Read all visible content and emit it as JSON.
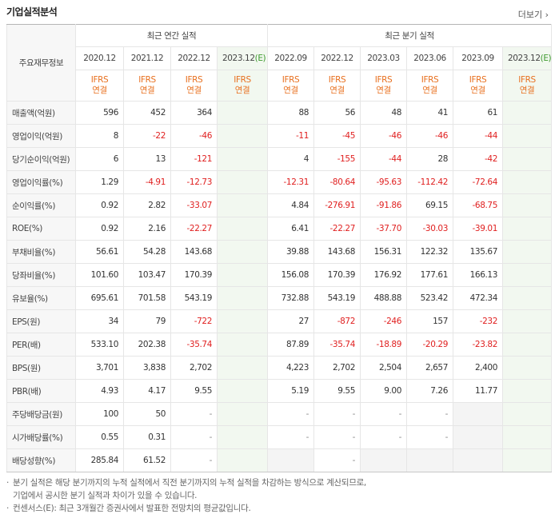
{
  "header": {
    "title": "기업실적분석",
    "more": "더보기"
  },
  "table": {
    "corner": "주요재무정보",
    "groups": [
      {
        "label": "최근 연간 실적",
        "columns": [
          {
            "date": "2020.12",
            "basis": [
              "IFRS",
              "연결"
            ]
          },
          {
            "date": "2021.12",
            "basis": [
              "IFRS",
              "연결"
            ]
          },
          {
            "date": "2022.12",
            "basis": [
              "IFRS",
              "연결"
            ]
          },
          {
            "date": "2023.12",
            "estimate": "(E)",
            "basis": [
              "IFRS",
              "연결"
            ]
          }
        ]
      },
      {
        "label": "최근 분기 실적",
        "columns": [
          {
            "date": "2022.09",
            "basis": [
              "IFRS",
              "연결"
            ]
          },
          {
            "date": "2022.12",
            "basis": [
              "IFRS",
              "연결"
            ]
          },
          {
            "date": "2023.03",
            "basis": [
              "IFRS",
              "연결"
            ]
          },
          {
            "date": "2023.06",
            "basis": [
              "IFRS",
              "연결"
            ]
          },
          {
            "date": "2023.09",
            "basis": [
              "IFRS",
              "연결"
            ]
          },
          {
            "date": "2023.12",
            "estimate": "(E)",
            "basis": [
              "IFRS",
              "연결"
            ]
          }
        ]
      }
    ],
    "sections": [
      [
        {
          "label": "매출액(억원)",
          "values": [
            "596",
            "452",
            "364",
            null,
            "88",
            "56",
            "48",
            "41",
            "61",
            null
          ]
        },
        {
          "label": "영업이익(억원)",
          "values": [
            "8",
            "-22",
            "-46",
            null,
            "-11",
            "-45",
            "-46",
            "-46",
            "-44",
            null
          ]
        },
        {
          "label": "당기순이익(억원)",
          "values": [
            "6",
            "13",
            "-121",
            null,
            "4",
            "-155",
            "-44",
            "28",
            "-42",
            null
          ]
        }
      ],
      [
        {
          "label": "영업이익률(%)",
          "values": [
            "1.29",
            "-4.91",
            "-12.73",
            null,
            "-12.31",
            "-80.64",
            "-95.63",
            "-112.42",
            "-72.64",
            null
          ]
        },
        {
          "label": "순이익률(%)",
          "values": [
            "0.92",
            "2.82",
            "-33.07",
            null,
            "4.84",
            "-276.91",
            "-91.86",
            "69.15",
            "-68.75",
            null
          ]
        },
        {
          "label": "ROE(%)",
          "values": [
            "0.92",
            "2.16",
            "-22.27",
            null,
            "6.41",
            "-22.27",
            "-37.70",
            "-30.03",
            "-39.01",
            null
          ]
        }
      ],
      [
        {
          "label": "부채비율(%)",
          "values": [
            "56.61",
            "54.28",
            "143.68",
            null,
            "39.88",
            "143.68",
            "156.31",
            "122.32",
            "135.67",
            null
          ]
        },
        {
          "label": "당좌비율(%)",
          "values": [
            "101.60",
            "103.47",
            "170.39",
            null,
            "156.08",
            "170.39",
            "176.92",
            "177.61",
            "166.13",
            null
          ]
        },
        {
          "label": "유보율(%)",
          "values": [
            "695.61",
            "701.58",
            "543.19",
            null,
            "732.88",
            "543.19",
            "488.88",
            "523.42",
            "472.34",
            null
          ]
        }
      ],
      [
        {
          "label": "EPS(원)",
          "values": [
            "34",
            "79",
            "-722",
            null,
            "27",
            "-872",
            "-246",
            "157",
            "-232",
            null
          ]
        },
        {
          "label": "PER(배)",
          "values": [
            "533.10",
            "202.38",
            "-35.74",
            null,
            "87.89",
            "-35.74",
            "-18.89",
            "-20.29",
            "-23.82",
            null
          ]
        },
        {
          "label": "BPS(원)",
          "values": [
            "3,701",
            "3,838",
            "2,702",
            null,
            "4,223",
            "2,702",
            "2,504",
            "2,657",
            "2,400",
            null
          ]
        },
        {
          "label": "PBR(배)",
          "values": [
            "4.93",
            "4.17",
            "9.55",
            null,
            "5.19",
            "9.55",
            "9.00",
            "7.26",
            "11.77",
            null
          ]
        }
      ],
      [
        {
          "label": "주당배당금(원)",
          "values": [
            "100",
            "50",
            "-",
            null,
            "-",
            "-",
            "-",
            "-",
            null,
            null
          ]
        },
        {
          "label": "시가배당률(%)",
          "values": [
            "0.55",
            "0.31",
            "-",
            null,
            "-",
            "-",
            "-",
            "-",
            null,
            null
          ]
        },
        {
          "label": "배당성향(%)",
          "values": [
            "285.84",
            "61.52",
            "-",
            null,
            null,
            "-",
            null,
            null,
            null,
            null
          ]
        }
      ]
    ]
  },
  "notes": [
    [
      "분기 실적은 해당 분기까지의 누적 실적에서 직전 분기까지의 누적 실적을 차감하는 방식으로 계산되므로,",
      "기업에서 공시한 분기 실적과 차이가 있을 수 있습니다."
    ],
    [
      "컨센서스(E): 최근 3개월간 증권사에서 발표한 전망치의 평균값입니다."
    ]
  ]
}
